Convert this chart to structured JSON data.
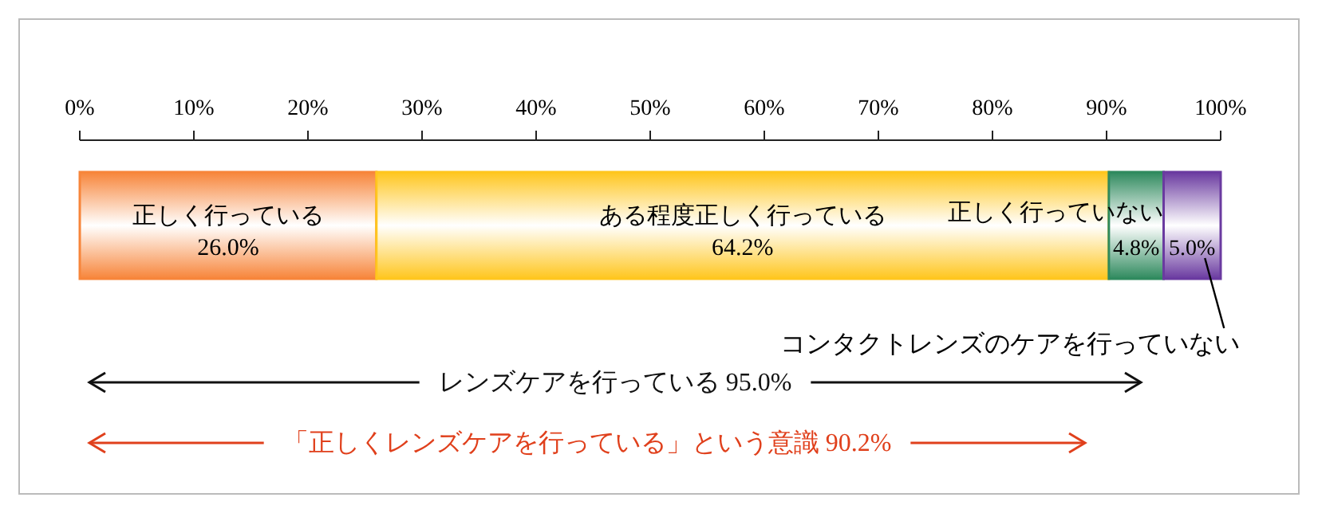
{
  "chart_data": {
    "type": "bar",
    "orientation": "horizontal",
    "stacked": true,
    "categories": [
      null
    ],
    "xlim": [
      0,
      100
    ],
    "xticks": [
      {
        "value": 0,
        "label": "0%"
      },
      {
        "value": 10,
        "label": "10%"
      },
      {
        "value": 20,
        "label": "20%"
      },
      {
        "value": 30,
        "label": "30%"
      },
      {
        "value": 40,
        "label": "40%"
      },
      {
        "value": 50,
        "label": "50%"
      },
      {
        "value": 60,
        "label": "60%"
      },
      {
        "value": 70,
        "label": "70%"
      },
      {
        "value": 80,
        "label": "80%"
      },
      {
        "value": 90,
        "label": "90%"
      },
      {
        "value": 100,
        "label": "100%"
      }
    ],
    "series": [
      {
        "name": "正しく行っている",
        "color": "#f7853a",
        "values": [
          26.0
        ],
        "value_labels": [
          "26.0%"
        ]
      },
      {
        "name": "ある程度正しく行っている",
        "color": "#ffc61e",
        "values": [
          64.2
        ],
        "value_labels": [
          "64.2%"
        ]
      },
      {
        "name": "正しく行っていない",
        "color": "#2f8a5e",
        "values": [
          4.8
        ],
        "value_labels": [
          "4.8%"
        ]
      },
      {
        "name": "コンタクトレンズのケアを行っていない",
        "color": "#6a3aa0",
        "values": [
          5.0
        ],
        "value_labels": [
          "5.0%"
        ]
      }
    ],
    "annotations": [
      "レンズケアを行っている 95.0%",
      "「正しくレンズケアを行っている」という意識 90.2%"
    ],
    "grid": false
  }
}
